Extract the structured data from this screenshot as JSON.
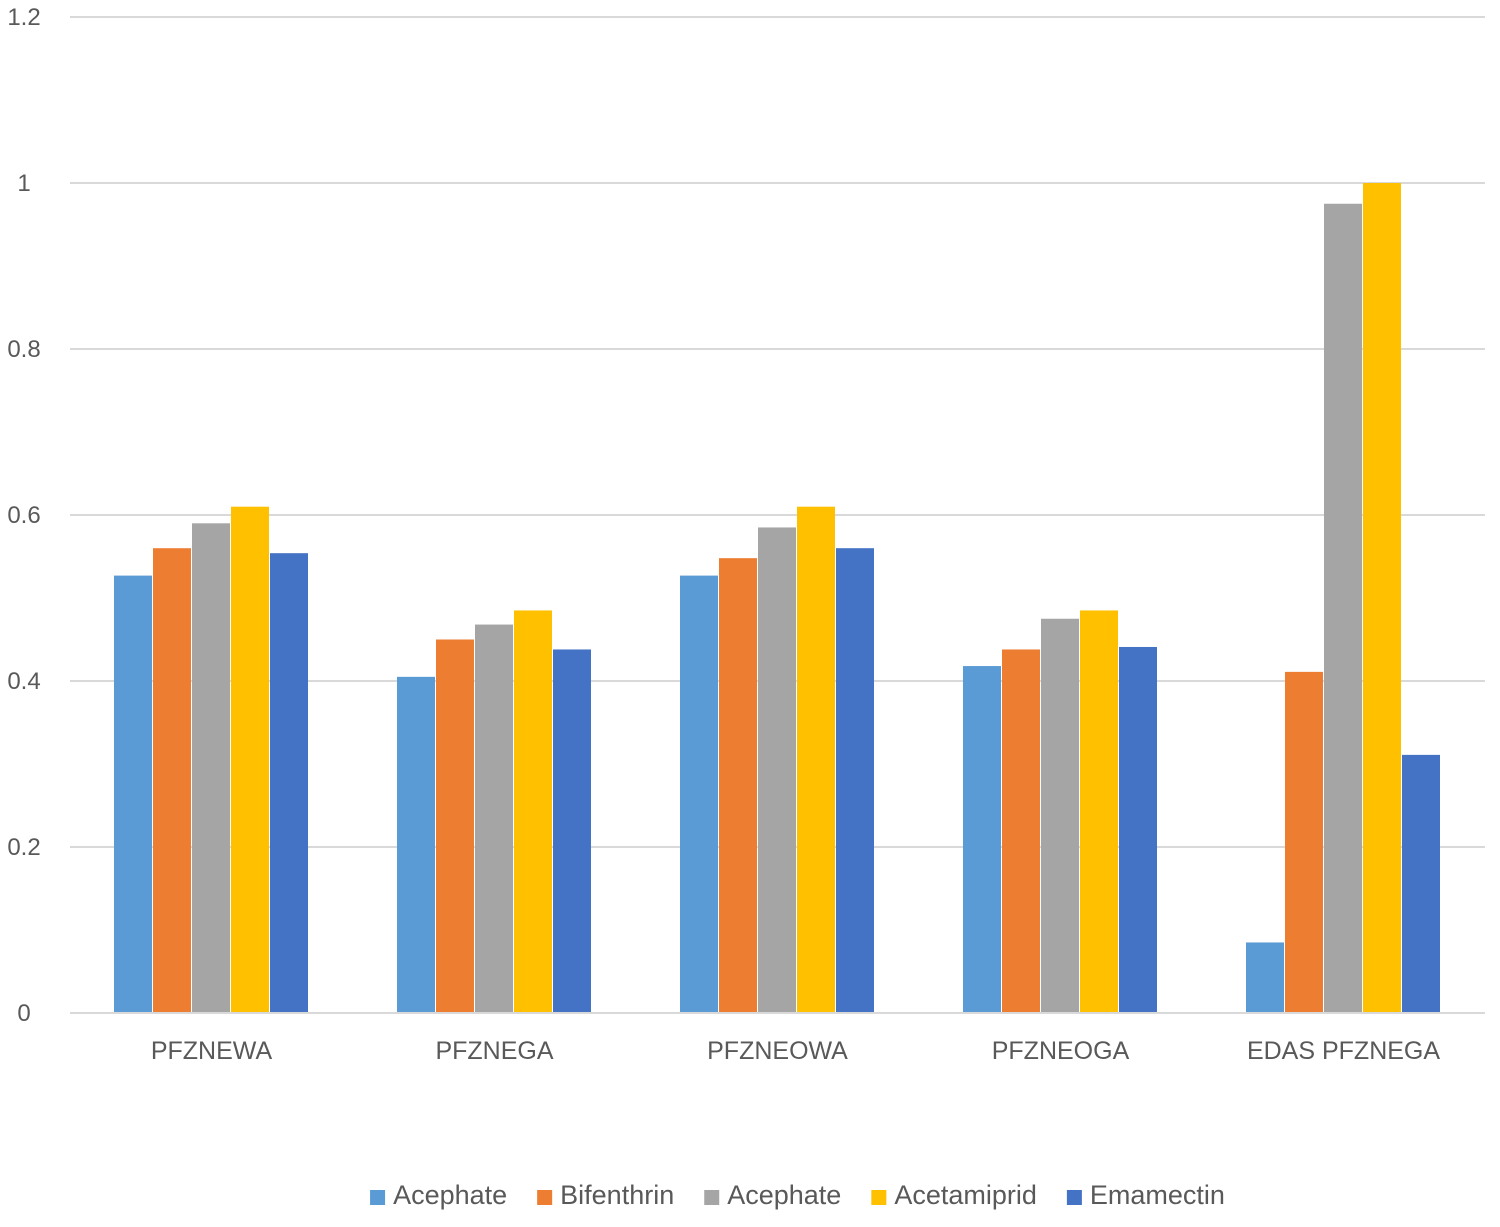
{
  "chart_data": {
    "type": "bar",
    "title": "",
    "xlabel": "",
    "ylabel": "",
    "ylim": [
      0,
      1.2
    ],
    "yticks": [
      0,
      0.2,
      0.4,
      0.6,
      0.8,
      1,
      1.2
    ],
    "grid": true,
    "legend_position": "bottom",
    "categories": [
      "PFZNEWA",
      "PFZNEGA",
      "PFZNEOWA",
      "PFZNEOGA",
      "EDAS PFZNEGA"
    ],
    "series": [
      {
        "name": "Acephate",
        "color": "#5B9BD5",
        "values": [
          0.527,
          0.405,
          0.527,
          0.418,
          0.085
        ]
      },
      {
        "name": "Bifenthrin",
        "color": "#ED7D31",
        "values": [
          0.56,
          0.45,
          0.548,
          0.438,
          0.411
        ]
      },
      {
        "name": "Acephate",
        "color": "#A5A5A5",
        "values": [
          0.59,
          0.468,
          0.585,
          0.475,
          0.975
        ]
      },
      {
        "name": "Acetamiprid",
        "color": "#FFC000",
        "values": [
          0.61,
          0.485,
          0.61,
          0.485,
          1.0
        ]
      },
      {
        "name": "Emamectin",
        "color": "#4472C4",
        "values": [
          0.554,
          0.438,
          0.56,
          0.441,
          0.311
        ]
      }
    ]
  }
}
